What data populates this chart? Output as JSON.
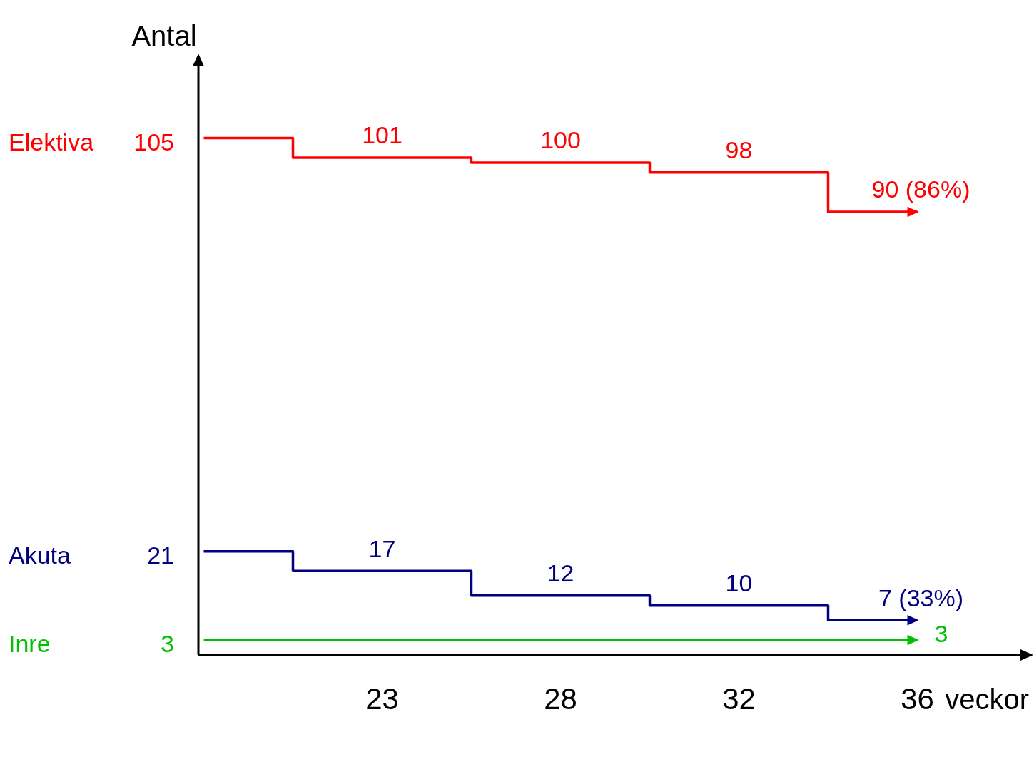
{
  "chart_data": {
    "type": "step",
    "ylabel": "Antal",
    "xlabel": "veckor",
    "categories": [
      null,
      "23",
      "28",
      "32",
      "36"
    ],
    "series": [
      {
        "name": "Elektiva",
        "color": "#ff0000",
        "values": [
          105,
          101,
          100,
          98,
          90
        ],
        "value_labels": [
          "105",
          "101",
          "100",
          "98",
          "90 (86%)"
        ]
      },
      {
        "name": "Akuta",
        "color": "#000080",
        "values": [
          21,
          17,
          12,
          10,
          7
        ],
        "value_labels": [
          "21",
          "17",
          "12",
          "10",
          "7 (33%)"
        ]
      },
      {
        "name": "Inre",
        "color": "#00c000",
        "values": [
          3,
          3,
          3,
          3,
          3
        ],
        "value_labels": [
          "3",
          null,
          null,
          null,
          "3"
        ]
      }
    ]
  }
}
